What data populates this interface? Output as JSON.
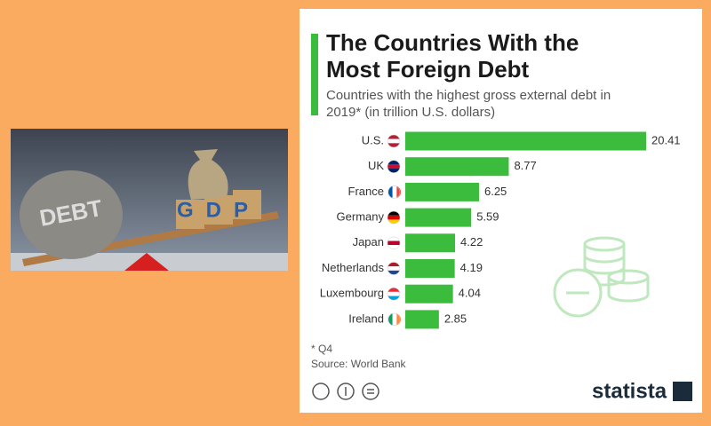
{
  "illustration": {
    "rock_label": "DEBT",
    "boxes_label": "GDP"
  },
  "chart_data": {
    "type": "bar",
    "orientation": "horizontal",
    "title": "The Countries With the Most Foreign Debt",
    "subtitle": "Countries with the highest gross external debt in 2019* (in trillion U.S. dollars)",
    "categories": [
      "U.S.",
      "UK",
      "France",
      "Germany",
      "Japan",
      "Netherlands",
      "Luxembourg",
      "Ireland"
    ],
    "values": [
      20.41,
      8.77,
      6.25,
      5.59,
      4.22,
      4.19,
      4.04,
      2.85
    ],
    "color": "#3cbc3c",
    "note": "* Q4",
    "source": "Source: World Bank",
    "brand": "statista"
  }
}
